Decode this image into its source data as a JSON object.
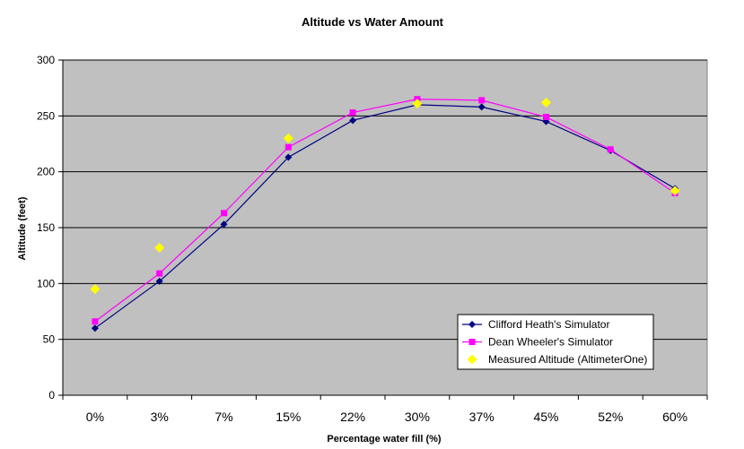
{
  "chart_data": {
    "type": "line",
    "title": "Altitude vs Water Amount",
    "xlabel": "Percentage water fill (%)",
    "ylabel": "Altitude (feet)",
    "categories": [
      "0%",
      "3%",
      "7%",
      "15%",
      "22%",
      "30%",
      "37%",
      "45%",
      "52%",
      "60%"
    ],
    "ylim": [
      0,
      300
    ],
    "yticks": [
      0,
      50,
      100,
      150,
      200,
      250,
      300
    ],
    "grid": true,
    "legend_position": "bottom-right",
    "plot_background": "#C0C0C0",
    "series": [
      {
        "name": "Clifford Heath's Simulator",
        "color": "#000080",
        "marker": "diamond",
        "values": [
          60,
          102,
          153,
          213,
          246,
          260,
          258,
          245,
          219,
          185
        ],
        "line": true
      },
      {
        "name": "Dean Wheeler's Simulator",
        "color": "#FF00FF",
        "marker": "square",
        "values": [
          66,
          109,
          163,
          222,
          253,
          265,
          264,
          249,
          220,
          181
        ],
        "line": true
      },
      {
        "name": "Measured Altitude (AltimeterOne)",
        "color": "#FFFF00",
        "marker": "diamond",
        "values": [
          95,
          132,
          null,
          230,
          null,
          261,
          null,
          262,
          null,
          183
        ],
        "line": false
      }
    ]
  }
}
